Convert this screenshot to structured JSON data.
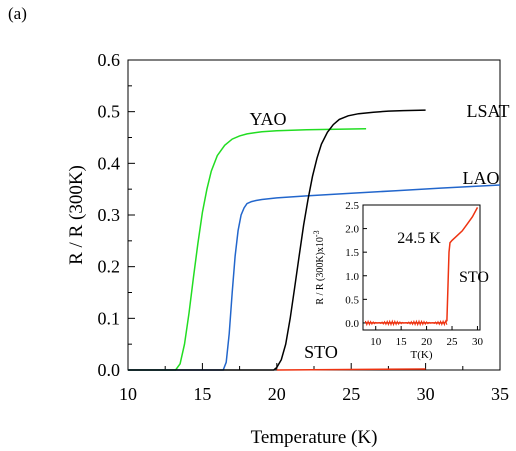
{
  "panel_label": "(a)",
  "chart_data": [
    {
      "type": "line",
      "xlabel": "Temperature (K)",
      "ylabel": "R / R (300K)",
      "xlim": [
        10,
        35
      ],
      "ylim": [
        0,
        0.6
      ],
      "xticks": [
        "10",
        "15",
        "20",
        "25",
        "30",
        "35"
      ],
      "yticks": [
        "0.0",
        "0.1",
        "0.2",
        "0.3",
        "0.4",
        "0.5",
        "0.6"
      ],
      "series": [
        {
          "name": "YAO",
          "color": "#22dd22",
          "x": [
            10,
            13.2,
            13.5,
            13.8,
            14.1,
            14.4,
            14.7,
            15.0,
            15.3,
            15.6,
            16.0,
            16.5,
            17.0,
            17.5,
            18.0,
            18.5,
            19.0,
            20.0,
            21.0,
            22.0,
            24.0,
            26.0
          ],
          "y": [
            0.0,
            0.0,
            0.012,
            0.05,
            0.11,
            0.18,
            0.245,
            0.305,
            0.35,
            0.385,
            0.415,
            0.435,
            0.447,
            0.453,
            0.457,
            0.459,
            0.461,
            0.463,
            0.464,
            0.465,
            0.466,
            0.467
          ]
        },
        {
          "name": "LAO",
          "color": "#2266cc",
          "x": [
            10,
            16.4,
            16.6,
            16.8,
            17.0,
            17.2,
            17.4,
            17.6,
            17.8,
            18.0,
            18.3,
            18.6,
            19.0,
            20.0,
            22.0,
            25.0,
            28.0,
            31.0,
            35.0
          ],
          "y": [
            0.0,
            0.0,
            0.015,
            0.07,
            0.15,
            0.22,
            0.27,
            0.3,
            0.314,
            0.322,
            0.326,
            0.328,
            0.33,
            0.333,
            0.337,
            0.342,
            0.347,
            0.352,
            0.358
          ]
        },
        {
          "name": "LSAT",
          "color": "#000000",
          "x": [
            10,
            19.8,
            20.0,
            20.3,
            20.6,
            20.9,
            21.2,
            21.5,
            21.8,
            22.1,
            22.4,
            22.7,
            23.0,
            23.4,
            23.8,
            24.2,
            24.8,
            25.5,
            26.5,
            27.5,
            28.5,
            30.0
          ],
          "y": [
            0.0,
            0.0,
            0.005,
            0.02,
            0.05,
            0.1,
            0.16,
            0.22,
            0.28,
            0.33,
            0.375,
            0.41,
            0.437,
            0.46,
            0.475,
            0.485,
            0.492,
            0.496,
            0.499,
            0.501,
            0.502,
            0.503
          ]
        },
        {
          "name": "STO",
          "color": "#ee3311",
          "x": [
            20,
            30
          ],
          "y": [
            0.0,
            0.002
          ]
        }
      ],
      "labels": [
        "YAO",
        "LSAT",
        "LAO",
        "STO"
      ]
    },
    {
      "type": "line",
      "xlabel": "T(K)",
      "ylabel": "R / R (300K)x10",
      "ylabel_exp": "-3",
      "xlim": [
        7.5,
        30.5
      ],
      "ylim": [
        -0.15,
        2.5
      ],
      "xticks": [
        "10",
        "15",
        "20",
        "25",
        "30"
      ],
      "yticks": [
        "0.0",
        "0.5",
        "1.0",
        "1.5",
        "2.0",
        "2.5"
      ],
      "annotation": "24.5 K",
      "label": "STO",
      "series": [
        {
          "name": "STO",
          "color": "#ee3311",
          "x": [
            8,
            10,
            12,
            14,
            16,
            18,
            20,
            22,
            23.5,
            24.0,
            24.2,
            24.4,
            24.6,
            25,
            26,
            27,
            28,
            29,
            30
          ],
          "y": [
            0.0,
            0.0,
            0.0,
            0.0,
            0.0,
            0.0,
            0.0,
            0.0,
            0.0,
            0.05,
            0.8,
            1.5,
            1.7,
            1.75,
            1.85,
            1.95,
            2.1,
            2.25,
            2.45
          ]
        }
      ]
    }
  ]
}
